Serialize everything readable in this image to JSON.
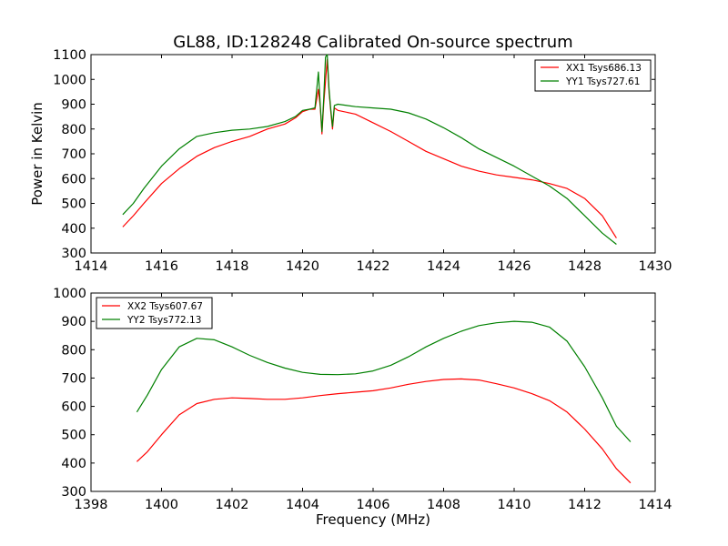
{
  "chart_data": [
    {
      "type": "line",
      "title": "GL88, ID:128248 Calibrated On-source spectrum",
      "xlabel": "",
      "ylabel": "Power in Kelvin",
      "xlim": [
        1414,
        1430
      ],
      "ylim": [
        300,
        1100
      ],
      "xticks": [
        1414,
        1416,
        1418,
        1420,
        1422,
        1424,
        1426,
        1428,
        1430
      ],
      "yticks": [
        300,
        400,
        500,
        600,
        700,
        800,
        900,
        1000,
        1100
      ],
      "grid": false,
      "legend_position": "top-right",
      "series": [
        {
          "name": "XX1 Tsys686.13",
          "color": "#ff0000",
          "points": [
            [
              1414.9,
              405
            ],
            [
              1415.2,
              450
            ],
            [
              1415.5,
              500
            ],
            [
              1416.0,
              580
            ],
            [
              1416.5,
              640
            ],
            [
              1417.0,
              690
            ],
            [
              1417.5,
              725
            ],
            [
              1418.0,
              750
            ],
            [
              1418.5,
              770
            ],
            [
              1419.0,
              800
            ],
            [
              1419.5,
              820
            ],
            [
              1419.8,
              845
            ],
            [
              1420.0,
              870
            ],
            [
              1420.2,
              880
            ],
            [
              1420.35,
              880
            ],
            [
              1420.45,
              960
            ],
            [
              1420.5,
              890
            ],
            [
              1420.55,
              780
            ],
            [
              1420.6,
              900
            ],
            [
              1420.7,
              1080
            ],
            [
              1420.75,
              950
            ],
            [
              1420.8,
              870
            ],
            [
              1420.85,
              800
            ],
            [
              1420.9,
              885
            ],
            [
              1421.0,
              875
            ],
            [
              1421.5,
              860
            ],
            [
              1422.0,
              825
            ],
            [
              1422.5,
              790
            ],
            [
              1423.0,
              750
            ],
            [
              1423.5,
              710
            ],
            [
              1424.0,
              680
            ],
            [
              1424.5,
              650
            ],
            [
              1425.0,
              630
            ],
            [
              1425.5,
              615
            ],
            [
              1426.0,
              605
            ],
            [
              1426.5,
              595
            ],
            [
              1427.0,
              580
            ],
            [
              1427.5,
              560
            ],
            [
              1428.0,
              520
            ],
            [
              1428.5,
              450
            ],
            [
              1428.9,
              360
            ]
          ]
        },
        {
          "name": "YY1 Tsys727.61",
          "color": "#008000",
          "points": [
            [
              1414.9,
              455
            ],
            [
              1415.2,
              500
            ],
            [
              1415.5,
              560
            ],
            [
              1416.0,
              650
            ],
            [
              1416.5,
              720
            ],
            [
              1417.0,
              770
            ],
            [
              1417.5,
              785
            ],
            [
              1418.0,
              795
            ],
            [
              1418.5,
              800
            ],
            [
              1419.0,
              810
            ],
            [
              1419.5,
              830
            ],
            [
              1419.8,
              850
            ],
            [
              1420.0,
              875
            ],
            [
              1420.2,
              880
            ],
            [
              1420.35,
              885
            ],
            [
              1420.45,
              1030
            ],
            [
              1420.5,
              900
            ],
            [
              1420.55,
              790
            ],
            [
              1420.6,
              920
            ],
            [
              1420.65,
              1090
            ],
            [
              1420.7,
              1100
            ],
            [
              1420.75,
              960
            ],
            [
              1420.8,
              880
            ],
            [
              1420.85,
              810
            ],
            [
              1420.9,
              895
            ],
            [
              1421.0,
              900
            ],
            [
              1421.5,
              890
            ],
            [
              1422.0,
              885
            ],
            [
              1422.5,
              880
            ],
            [
              1423.0,
              865
            ],
            [
              1423.5,
              840
            ],
            [
              1424.0,
              805
            ],
            [
              1424.5,
              765
            ],
            [
              1425.0,
              720
            ],
            [
              1425.5,
              685
            ],
            [
              1426.0,
              650
            ],
            [
              1426.5,
              610
            ],
            [
              1427.0,
              570
            ],
            [
              1427.5,
              520
            ],
            [
              1428.0,
              450
            ],
            [
              1428.5,
              380
            ],
            [
              1428.9,
              335
            ]
          ]
        }
      ]
    },
    {
      "type": "line",
      "title": "",
      "xlabel": "Frequency (MHz)",
      "ylabel": "",
      "xlim": [
        1398,
        1414
      ],
      "ylim": [
        300,
        1000
      ],
      "xticks": [
        1398,
        1400,
        1402,
        1404,
        1406,
        1408,
        1410,
        1412,
        1414
      ],
      "yticks": [
        300,
        400,
        500,
        600,
        700,
        800,
        900,
        1000
      ],
      "grid": false,
      "legend_position": "top-left",
      "series": [
        {
          "name": "XX2 Tsys607.67",
          "color": "#ff0000",
          "points": [
            [
              1399.3,
              405
            ],
            [
              1399.6,
              440
            ],
            [
              1400.0,
              500
            ],
            [
              1400.5,
              570
            ],
            [
              1401.0,
              610
            ],
            [
              1401.5,
              625
            ],
            [
              1402.0,
              630
            ],
            [
              1402.5,
              628
            ],
            [
              1403.0,
              625
            ],
            [
              1403.5,
              625
            ],
            [
              1404.0,
              630
            ],
            [
              1404.5,
              638
            ],
            [
              1405.0,
              645
            ],
            [
              1405.5,
              650
            ],
            [
              1406.0,
              655
            ],
            [
              1406.5,
              665
            ],
            [
              1407.0,
              678
            ],
            [
              1407.5,
              688
            ],
            [
              1408.0,
              695
            ],
            [
              1408.5,
              697
            ],
            [
              1409.0,
              693
            ],
            [
              1409.5,
              680
            ],
            [
              1410.0,
              665
            ],
            [
              1410.5,
              645
            ],
            [
              1411.0,
              620
            ],
            [
              1411.5,
              580
            ],
            [
              1412.0,
              520
            ],
            [
              1412.5,
              450
            ],
            [
              1412.9,
              380
            ],
            [
              1413.3,
              330
            ]
          ]
        },
        {
          "name": "YY2 Tsys772.13",
          "color": "#008000",
          "points": [
            [
              1399.3,
              580
            ],
            [
              1399.6,
              640
            ],
            [
              1400.0,
              730
            ],
            [
              1400.5,
              810
            ],
            [
              1401.0,
              840
            ],
            [
              1401.5,
              835
            ],
            [
              1402.0,
              810
            ],
            [
              1402.5,
              780
            ],
            [
              1403.0,
              755
            ],
            [
              1403.5,
              735
            ],
            [
              1404.0,
              720
            ],
            [
              1404.5,
              713
            ],
            [
              1405.0,
              712
            ],
            [
              1405.5,
              715
            ],
            [
              1406.0,
              725
            ],
            [
              1406.5,
              745
            ],
            [
              1407.0,
              775
            ],
            [
              1407.5,
              810
            ],
            [
              1408.0,
              840
            ],
            [
              1408.5,
              865
            ],
            [
              1409.0,
              885
            ],
            [
              1409.5,
              895
            ],
            [
              1410.0,
              900
            ],
            [
              1410.5,
              897
            ],
            [
              1411.0,
              880
            ],
            [
              1411.5,
              830
            ],
            [
              1412.0,
              740
            ],
            [
              1412.5,
              630
            ],
            [
              1412.9,
              530
            ],
            [
              1413.3,
              475
            ]
          ]
        }
      ]
    }
  ]
}
